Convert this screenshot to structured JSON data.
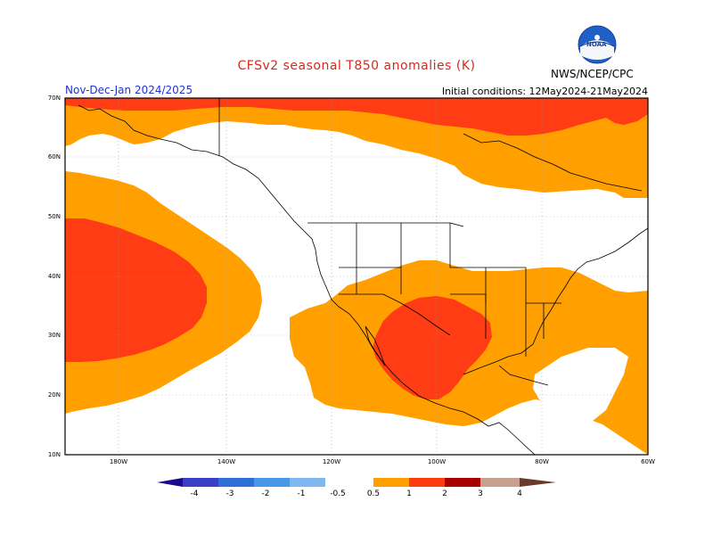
{
  "header": {
    "title": "CFSv2 seasonal T850 anomalies (K)",
    "period": "Nov-Dec-Jan 2024/2025",
    "initial_conditions": "Initial conditions: 12May2024-21May2024",
    "agency": "NWS/NCEP/CPC",
    "logo_text": "NOAA"
  },
  "map": {
    "projection": "lat-lon",
    "lat_range": [
      10,
      70
    ],
    "lon_range": [
      -190,
      -60
    ],
    "lat_labels": [
      "70N",
      "60N",
      "50N",
      "40N",
      "30N",
      "20N",
      "10N"
    ],
    "lon_labels": [
      "180W",
      "140W",
      "120W",
      "100W",
      "80W",
      "60W"
    ]
  },
  "legend": {
    "labels": [
      "-4",
      "-3",
      "-2",
      "-1",
      "-0.5",
      "0.5",
      "1",
      "2",
      "3",
      "4"
    ],
    "colors": [
      "#1a0a8c",
      "#3a3fc8",
      "#2e6fd8",
      "#4898e8",
      "#7fb8f0",
      "#ffffff",
      "#ff9f00",
      "#ff3a10",
      "#a80000",
      "#c8a090",
      "#6b3a2a"
    ]
  },
  "colors": {
    "anomaly_0_5_to_1": "#ffa000",
    "anomaly_1_to_2": "#ff3c14",
    "anomaly_2_to_3": "#b00000",
    "title": "#d42a1e",
    "period": "#2233cc"
  }
}
